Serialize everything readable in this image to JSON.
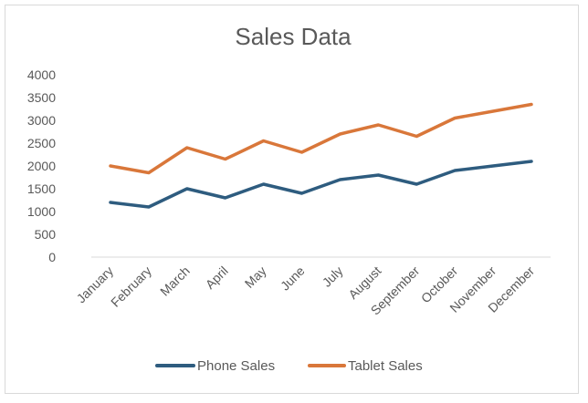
{
  "chart_data": {
    "type": "line",
    "title": "Sales Data",
    "xlabel": "",
    "ylabel": "",
    "categories": [
      "January",
      "February",
      "March",
      "April",
      "May",
      "June",
      "July",
      "August",
      "September",
      "October",
      "November",
      "December"
    ],
    "series": [
      {
        "name": "Phone Sales",
        "color": "#2e5c7f",
        "values": [
          1200,
          1100,
          1500,
          1300,
          1600,
          1400,
          1700,
          1800,
          1600,
          1900,
          2000,
          2100
        ]
      },
      {
        "name": "Tablet Sales",
        "color": "#d9773a",
        "values": [
          2000,
          1850,
          2400,
          2150,
          2550,
          2300,
          2700,
          2900,
          2650,
          3050,
          3200,
          3350
        ]
      }
    ],
    "ylim": [
      0,
      4000
    ],
    "yticks": [
      0,
      500,
      1000,
      1500,
      2000,
      2500,
      3000,
      3500,
      4000
    ],
    "grid": false,
    "legend": "bottom"
  }
}
